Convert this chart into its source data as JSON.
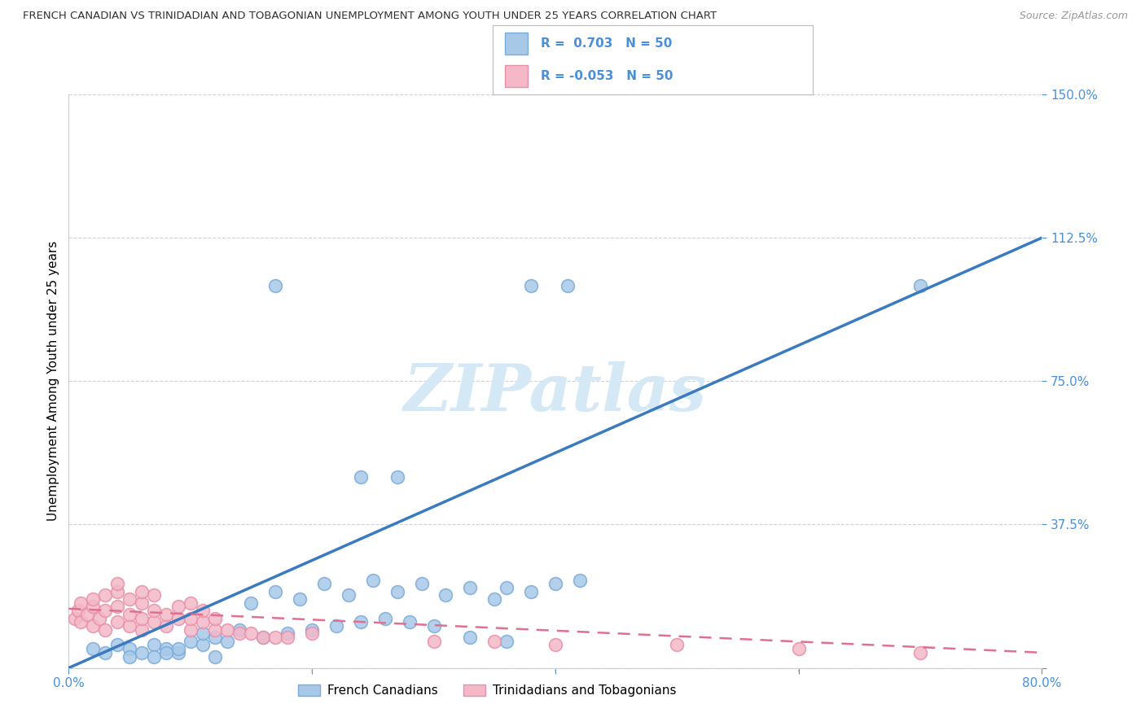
{
  "title": "FRENCH CANADIAN VS TRINIDADIAN AND TOBAGONIAN UNEMPLOYMENT AMONG YOUTH UNDER 25 YEARS CORRELATION CHART",
  "source": "Source: ZipAtlas.com",
  "ylabel": "Unemployment Among Youth under 25 years",
  "xlim": [
    0.0,
    0.8
  ],
  "ylim": [
    0.0,
    1.5
  ],
  "ytick_positions": [
    0.0,
    0.375,
    0.75,
    1.125,
    1.5
  ],
  "ytick_labels": [
    "",
    "37.5%",
    "75.0%",
    "112.5%",
    "150.0%"
  ],
  "xtick_positions": [
    0.0,
    0.2,
    0.4,
    0.6,
    0.8
  ],
  "xtick_labels": [
    "0.0%",
    "",
    "",
    "",
    "80.0%"
  ],
  "blue_color": "#a8c8e8",
  "blue_edge_color": "#7aacda",
  "pink_color": "#f4b8c8",
  "pink_edge_color": "#e890a8",
  "blue_line_color": "#3a7abf",
  "pink_line_color": "#e07090",
  "text_color": "#4a90d9",
  "title_color": "#333333",
  "source_color": "#999999",
  "grid_color": "#cccccc",
  "watermark_text": "ZIPatlas",
  "watermark_color": "#d5e8f5",
  "legend_label1": "R =  0.703   N = 50",
  "legend_label2": "R = -0.053   N = 50",
  "bottom_legend1": "French Canadians",
  "bottom_legend2": "Trinidadians and Tobagonians",
  "blue_x": [
    0.02,
    0.03,
    0.04,
    0.05,
    0.06,
    0.07,
    0.08,
    0.09,
    0.1,
    0.11,
    0.12,
    0.13,
    0.05,
    0.07,
    0.09,
    0.11,
    0.14,
    0.16,
    0.18,
    0.2,
    0.22,
    0.24,
    0.26,
    0.28,
    0.3,
    0.17,
    0.21,
    0.25,
    0.29,
    0.33,
    0.15,
    0.19,
    0.23,
    0.27,
    0.31,
    0.35,
    0.38,
    0.4,
    0.42,
    0.36,
    0.17,
    0.38,
    0.41,
    0.7,
    0.24,
    0.27,
    0.33,
    0.36,
    0.08,
    0.12
  ],
  "blue_y": [
    0.05,
    0.04,
    0.06,
    0.05,
    0.04,
    0.06,
    0.05,
    0.04,
    0.07,
    0.06,
    0.08,
    0.07,
    0.03,
    0.03,
    0.05,
    0.09,
    0.1,
    0.08,
    0.09,
    0.1,
    0.11,
    0.12,
    0.13,
    0.12,
    0.11,
    0.2,
    0.22,
    0.23,
    0.22,
    0.21,
    0.17,
    0.18,
    0.19,
    0.2,
    0.19,
    0.18,
    0.2,
    0.22,
    0.23,
    0.21,
    1.0,
    1.0,
    1.0,
    1.0,
    0.5,
    0.5,
    0.08,
    0.07,
    0.04,
    0.03
  ],
  "pink_x": [
    0.005,
    0.008,
    0.01,
    0.01,
    0.015,
    0.02,
    0.02,
    0.02,
    0.025,
    0.03,
    0.03,
    0.03,
    0.04,
    0.04,
    0.04,
    0.05,
    0.05,
    0.05,
    0.06,
    0.06,
    0.06,
    0.07,
    0.07,
    0.07,
    0.08,
    0.08,
    0.09,
    0.09,
    0.1,
    0.1,
    0.1,
    0.11,
    0.11,
    0.12,
    0.12,
    0.13,
    0.14,
    0.15,
    0.16,
    0.17,
    0.18,
    0.2,
    0.3,
    0.35,
    0.4,
    0.5,
    0.6,
    0.7,
    0.04,
    0.06
  ],
  "pink_y": [
    0.13,
    0.15,
    0.12,
    0.17,
    0.14,
    0.11,
    0.16,
    0.18,
    0.13,
    0.1,
    0.15,
    0.19,
    0.12,
    0.16,
    0.2,
    0.11,
    0.14,
    0.18,
    0.1,
    0.13,
    0.17,
    0.12,
    0.15,
    0.19,
    0.11,
    0.14,
    0.13,
    0.16,
    0.1,
    0.13,
    0.17,
    0.12,
    0.15,
    0.1,
    0.13,
    0.1,
    0.09,
    0.09,
    0.08,
    0.08,
    0.08,
    0.09,
    0.07,
    0.07,
    0.06,
    0.06,
    0.05,
    0.04,
    0.22,
    0.2
  ],
  "blue_line_x0": 0.0,
  "blue_line_y0": 0.0,
  "blue_line_x1": 0.8,
  "blue_line_y1": 1.125,
  "pink_line_x0": 0.0,
  "pink_line_y0": 0.155,
  "pink_line_x1": 0.8,
  "pink_line_y1": 0.04
}
